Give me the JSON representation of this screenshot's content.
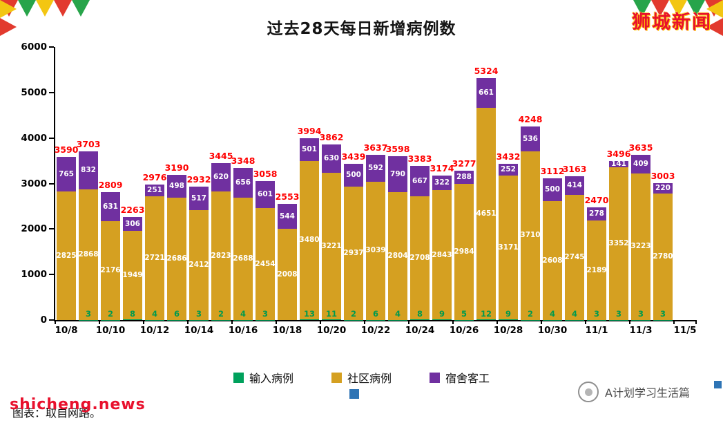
{
  "title": "过去28天每日新增病例数",
  "brand": "狮城新闻",
  "watermark": "shicheng.news",
  "caption": "图表：取自网路。",
  "footer": {
    "logo_text": "A计划学习生活篇"
  },
  "colors": {
    "imported": "#00a15c",
    "community": "#d5a021",
    "dormitory": "#7030a0",
    "total_label": "#ff0000",
    "imported_label": "#009a4e",
    "accent_blue": "#2e74b5",
    "brand_red": "#e8112d"
  },
  "legend": [
    {
      "label": "输入病例",
      "color": "#00a15c"
    },
    {
      "label": "社区病例",
      "color": "#d5a021"
    },
    {
      "label": "宿舍客工",
      "color": "#7030a0"
    }
  ],
  "chart_data": {
    "type": "bar",
    "stacked": true,
    "title": "过去28天每日新增病例数",
    "xlabel": "",
    "ylabel": "",
    "ylim": [
      0,
      6000
    ],
    "yticks": [
      0,
      1000,
      2000,
      3000,
      4000,
      5000,
      6000
    ],
    "grid": false,
    "legend_position": "bottom",
    "x_tick_labels": [
      "10/8",
      "10/10",
      "10/12",
      "10/14",
      "10/16",
      "10/18",
      "10/20",
      "10/22",
      "10/24",
      "10/26",
      "10/28",
      "10/30",
      "11/1",
      "11/3",
      "11/5"
    ],
    "series": [
      {
        "name": "输入病例",
        "color": "#00a15c",
        "values": [
          0,
          3,
          2,
          8,
          4,
          6,
          3,
          2,
          4,
          3,
          1,
          13,
          11,
          2,
          6,
          4,
          8,
          9,
          5,
          12,
          9,
          2,
          4,
          4,
          3,
          3,
          3,
          3
        ]
      },
      {
        "name": "社区病例",
        "color": "#d5a021",
        "values": [
          2825,
          2868,
          2176,
          1949,
          2721,
          2686,
          2412,
          2823,
          2688,
          2454,
          2008,
          3480,
          3221,
          2937,
          3039,
          2804,
          2708,
          2843,
          2984,
          4651,
          3171,
          3710,
          2608,
          2745,
          2189,
          3352,
          3223,
          2780
        ]
      },
      {
        "name": "宿舍客工",
        "color": "#7030a0",
        "values": [
          765,
          832,
          631,
          306,
          251,
          498,
          517,
          620,
          656,
          601,
          544,
          501,
          630,
          500,
          592,
          790,
          667,
          322,
          288,
          661,
          252,
          536,
          500,
          414,
          278,
          141,
          409,
          220
        ]
      }
    ],
    "totals": [
      3590,
      3703,
      2809,
      2263,
      2976,
      3190,
      2932,
      3445,
      3348,
      3058,
      2553,
      3994,
      3862,
      3439,
      3637,
      3598,
      3383,
      3174,
      3277,
      5324,
      3432,
      4248,
      3112,
      3163,
      2470,
      3496,
      3635,
      3003
    ]
  }
}
